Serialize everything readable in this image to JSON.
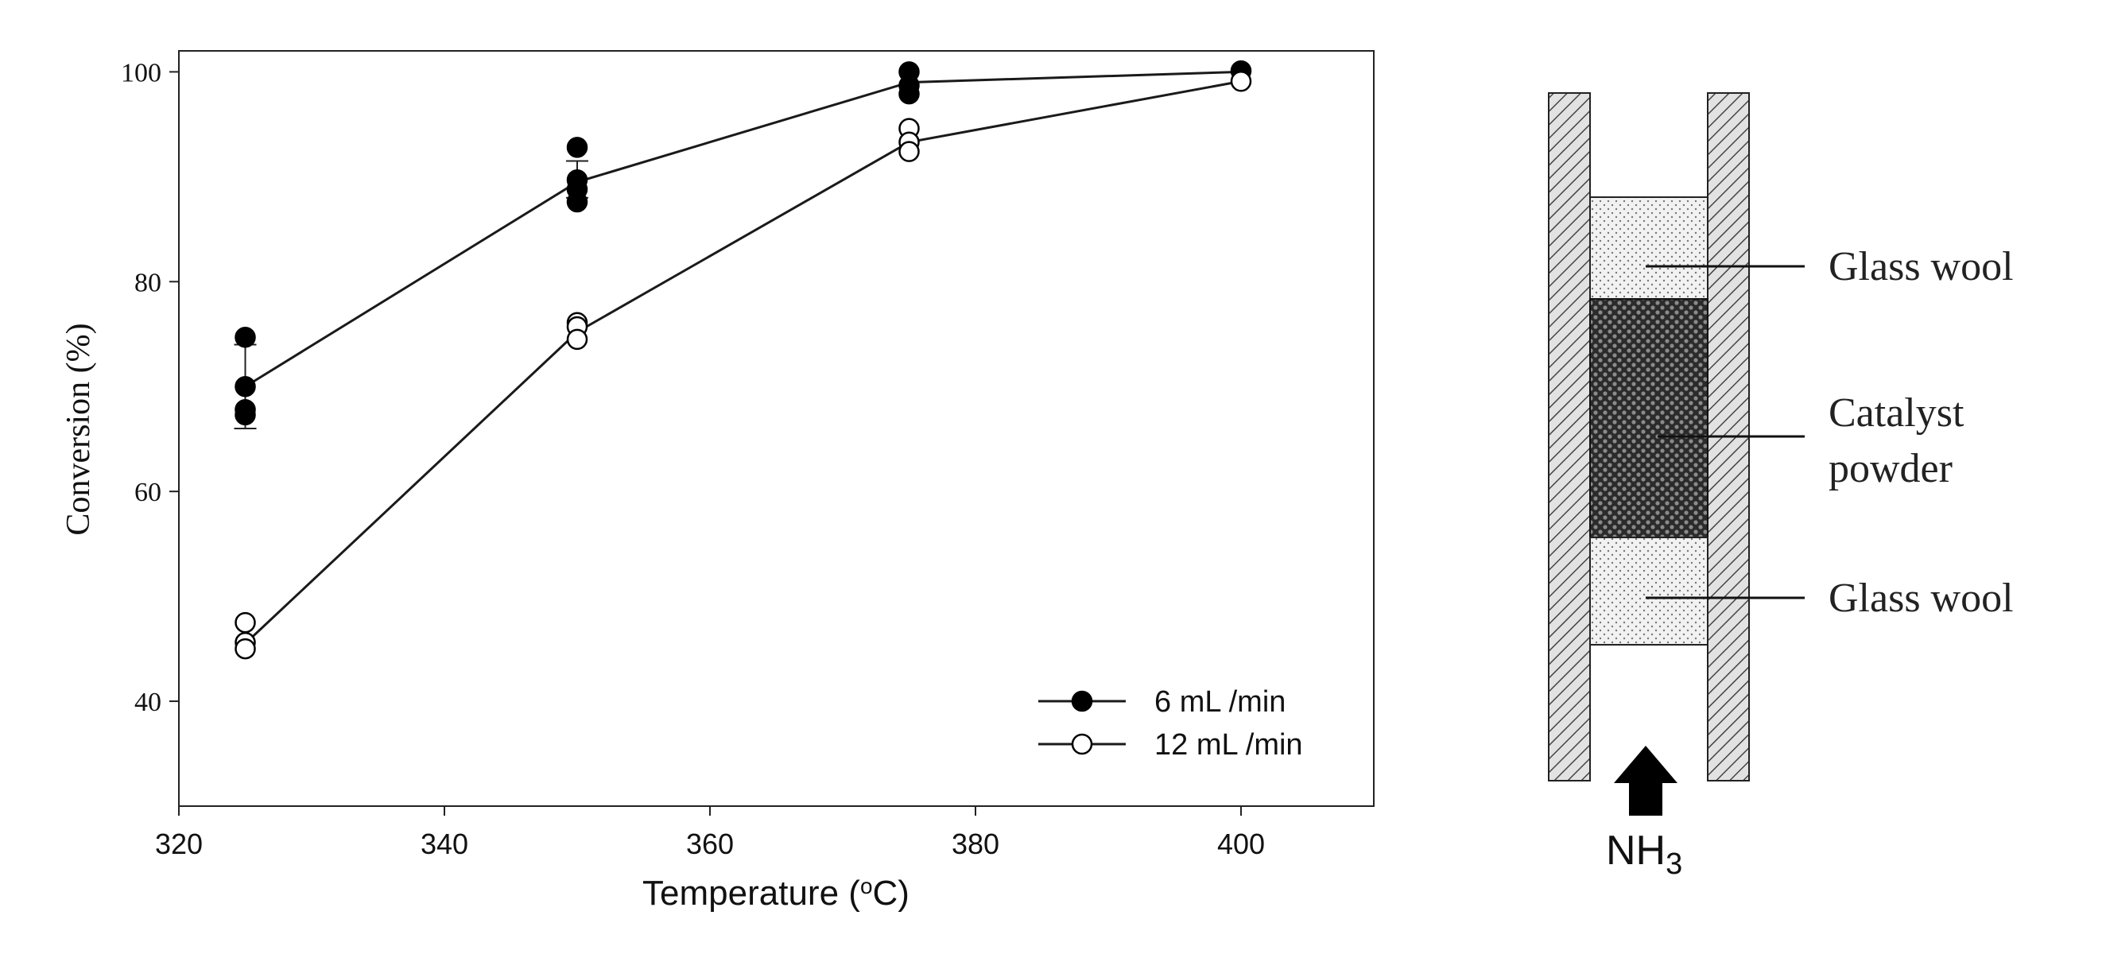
{
  "chart_data": {
    "type": "line",
    "title": "",
    "xlabel": "Temperature (",
    "xlabel_sup": "o",
    "xlabel_tail": "C)",
    "ylabel": "Conversion (%)",
    "xlim": [
      320,
      410
    ],
    "ylim": [
      30,
      102
    ],
    "xticks": [
      "320",
      "340",
      "360",
      "380",
      "400"
    ],
    "yticks": [
      "40",
      "60",
      "80",
      "100"
    ],
    "x": [
      325,
      350,
      375,
      400
    ],
    "series": [
      {
        "name": "6 mL /min",
        "marker": "filled-circle",
        "values": [
          70,
          89.5,
          99,
          100
        ],
        "points": [
          [
            325,
            74.7
          ],
          [
            325,
            70.0
          ],
          [
            325,
            67.8
          ],
          [
            325,
            67.3
          ],
          [
            350,
            92.8
          ],
          [
            350,
            89.7
          ],
          [
            350,
            88.8
          ],
          [
            350,
            87.6
          ],
          [
            375,
            100
          ],
          [
            375,
            98.7
          ],
          [
            375,
            97.9
          ],
          [
            400,
            100.1
          ]
        ],
        "errors": [
          [
            325,
            66,
            74
          ],
          [
            350,
            88,
            91.5
          ]
        ]
      },
      {
        "name": "12 mL /min",
        "marker": "open-circle",
        "values": [
          45.5,
          75.2,
          93.3,
          99.1
        ],
        "points": [
          [
            325,
            47.5
          ],
          [
            325,
            45.6
          ],
          [
            325,
            45.0
          ],
          [
            350,
            76.1
          ],
          [
            350,
            75.7
          ],
          [
            350,
            74.5
          ],
          [
            375,
            94.6
          ],
          [
            375,
            93.3
          ],
          [
            375,
            92.4
          ],
          [
            400,
            99.1
          ]
        ]
      }
    ],
    "legend": {
      "position": "bottom-right",
      "entries": [
        "6 mL /min",
        "12 mL /min"
      ]
    }
  },
  "diagram": {
    "labels": {
      "glass_wool_top": "Glass wool",
      "catalyst_line1": "Catalyst",
      "catalyst_line2": "powder",
      "glass_wool_bottom": "Glass wool"
    },
    "gas": {
      "main": "NH",
      "sub": "3"
    }
  },
  "colors": {
    "filled_marker": "#000000",
    "open_marker_fill": "#ffffff",
    "line": "#1a1a1a",
    "wall_fill": "#cfcfcf",
    "catalyst_fill": "#3a3a3a"
  }
}
